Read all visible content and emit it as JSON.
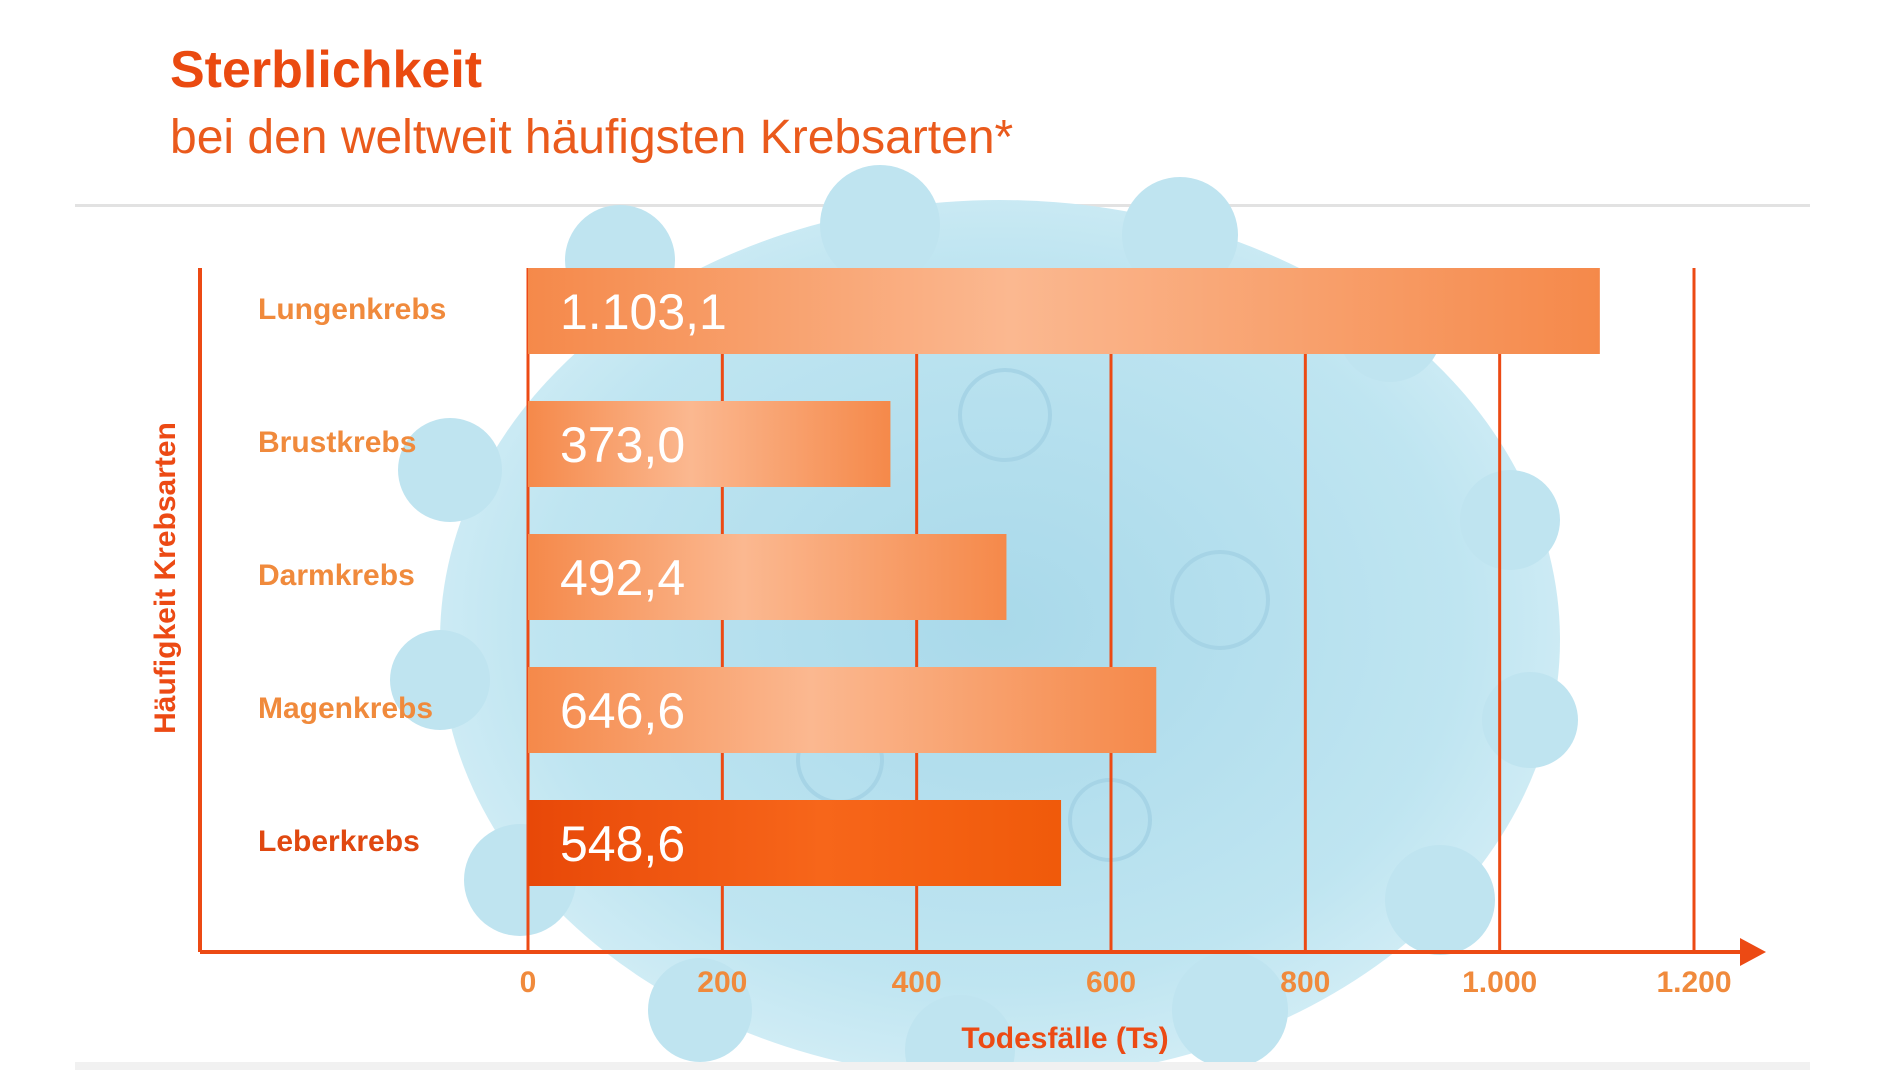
{
  "title": "Sterblichkeit",
  "subtitle": "bei den weltweit häufigsten Krebsarten*",
  "chart_data": {
    "type": "bar",
    "orientation": "horizontal",
    "categories": [
      "Lungenkrebs",
      "Brustkrebs",
      "Darmkrebs",
      "Magenkrebs",
      "Leberkrebs"
    ],
    "values": [
      1103.1,
      373.0,
      492.4,
      646.6,
      548.6
    ],
    "value_labels": [
      "1.103,1",
      "373,0",
      "492,4",
      "646,6",
      "548,6"
    ],
    "xlabel": "Todesfälle (Ts)",
    "ylabel": "Häufigkeit Krebsarten",
    "xlim": [
      0,
      1200
    ],
    "xticks": [
      0,
      200,
      400,
      600,
      800,
      1000,
      1200
    ],
    "xtick_labels": [
      "0",
      "200",
      "400",
      "600",
      "800",
      "1.000",
      "1.200"
    ],
    "grid": "vertical",
    "highlighted_category": "Leberkrebs",
    "colors": {
      "axis": "#ec4a14",
      "bar_light": "#fbb890",
      "bar_mid": "#f5894a",
      "bar_highlight": "#f05a0a",
      "category_label": "#f08a3c",
      "highlight_label": "#e04810",
      "background_blob": "#b9e2ef"
    }
  }
}
